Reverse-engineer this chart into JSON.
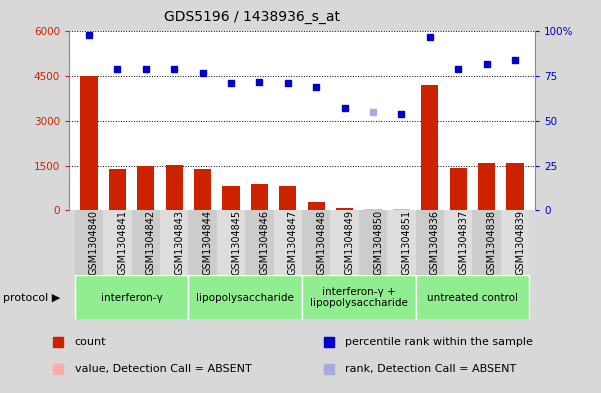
{
  "title": "GDS5196 / 1438936_s_at",
  "samples": [
    "GSM1304840",
    "GSM1304841",
    "GSM1304842",
    "GSM1304843",
    "GSM1304844",
    "GSM1304845",
    "GSM1304846",
    "GSM1304847",
    "GSM1304848",
    "GSM1304849",
    "GSM1304850",
    "GSM1304851",
    "GSM1304836",
    "GSM1304837",
    "GSM1304838",
    "GSM1304839"
  ],
  "counts": [
    4500,
    1380,
    1480,
    1520,
    1380,
    800,
    880,
    820,
    280,
    60,
    50,
    40,
    4200,
    1430,
    1580,
    1600
  ],
  "ranks": [
    98,
    79,
    79,
    79,
    77,
    71,
    72,
    71,
    69,
    57,
    55,
    54,
    97,
    79,
    82,
    84
  ],
  "absent_count_idx": [
    10,
    11
  ],
  "absent_rank_idx": [
    10
  ],
  "protocols": [
    {
      "label": "interferon-γ",
      "start": 0,
      "end": 4,
      "color": "#90ee90"
    },
    {
      "label": "lipopolysaccharide",
      "start": 4,
      "end": 8,
      "color": "#90ee90"
    },
    {
      "label": "interferon-γ +\nlipopolysaccharide",
      "start": 8,
      "end": 12,
      "color": "#90ee90"
    },
    {
      "label": "untreated control",
      "start": 12,
      "end": 16,
      "color": "#90ee90"
    }
  ],
  "ylim_left": [
    0,
    6000
  ],
  "ylim_right": [
    0,
    100
  ],
  "yticks_left": [
    0,
    1500,
    3000,
    4500,
    6000
  ],
  "yticks_right": [
    0,
    25,
    50,
    75,
    100
  ],
  "bar_color": "#cc2200",
  "dot_color": "#0000cc",
  "absent_bar_color": "#ffaaaa",
  "absent_dot_color": "#aaaadd",
  "bg_color": "#d8d8d8",
  "plot_bg": "#ffffff",
  "legend_items": [
    {
      "label": "count",
      "color": "#cc2200",
      "marker": "s"
    },
    {
      "label": "percentile rank within the sample",
      "color": "#0000cc",
      "marker": "s"
    },
    {
      "label": "value, Detection Call = ABSENT",
      "color": "#ffaaaa",
      "marker": "s"
    },
    {
      "label": "rank, Detection Call = ABSENT",
      "color": "#aaaadd",
      "marker": "s"
    }
  ]
}
